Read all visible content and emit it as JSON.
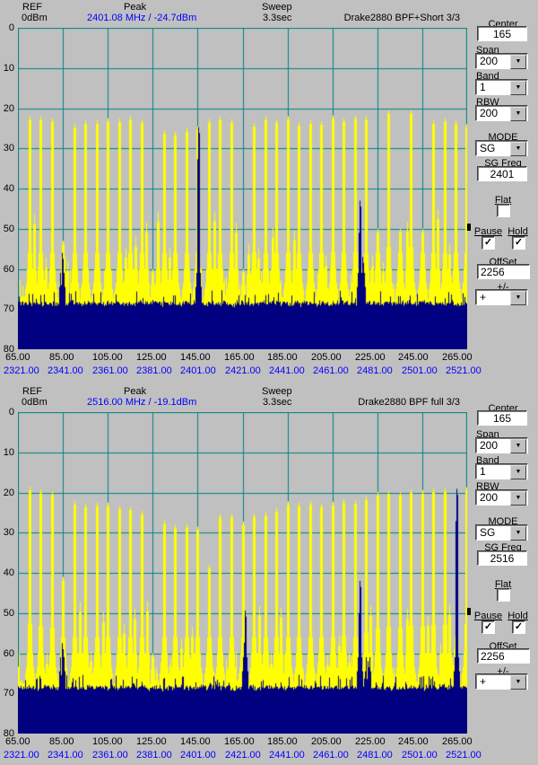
{
  "colors": {
    "window_bg": "#c0c0c0",
    "plot_bg": "#c0c0c0",
    "grid": "#008080",
    "trace_max_hold": "#ffff00",
    "trace_live": "#000080",
    "value_text": "#0000ff",
    "text": "#000000",
    "field_bg": "#ffffff"
  },
  "icons": {
    "dropdown_arrow": "▼",
    "check": "✓"
  },
  "axis": {
    "y_ticks": [
      "0",
      "10",
      "20",
      "30",
      "40",
      "50",
      "60",
      "70",
      "80"
    ],
    "x_ticks_if": [
      "65.00",
      "85.00",
      "105.00",
      "125.00",
      "145.00",
      "165.00",
      "185.00",
      "205.00",
      "225.00",
      "245.00",
      "265.00"
    ],
    "x_ticks_rf": [
      "2321.00",
      "2341.00",
      "2361.00",
      "2381.00",
      "2401.00",
      "2421.00",
      "2441.00",
      "2461.00",
      "2481.00",
      "2501.00",
      "2521.00"
    ]
  },
  "panels": [
    {
      "id": "top",
      "header": {
        "ref_label": "REF",
        "ref_value": "0dBm",
        "peak_label": "Peak",
        "peak_value": "2401.08 MHz / -24.7dBm",
        "sweep_label": "Sweep",
        "sweep_value": "3.3sec",
        "title": "Drake2880 BPF+Short 3/3"
      },
      "controls": {
        "center": {
          "label": "Center",
          "value": "165"
        },
        "span": {
          "label": "Span",
          "value": "200"
        },
        "band": {
          "label": "Band",
          "value": "1"
        },
        "rbw": {
          "label": "RBW",
          "value": "200"
        },
        "mode": {
          "label": "MODE",
          "value": "SG"
        },
        "sg_freq": {
          "label": "SG Freq",
          "value": "2401"
        },
        "flat": {
          "label": "Flat",
          "checked": false
        },
        "pause": {
          "label": "Pause",
          "checked": true
        },
        "hold": {
          "label": "Hold",
          "checked": true
        },
        "offset": {
          "label": "OffSet",
          "value": "2256"
        },
        "plusminus": {
          "label": "+/-",
          "value": "+"
        }
      }
    },
    {
      "id": "bottom",
      "header": {
        "ref_label": "REF",
        "ref_value": "0dBm",
        "peak_label": "Peak",
        "peak_value": "2516.00 MHz / -19.1dBm",
        "sweep_label": "Sweep",
        "sweep_value": "3.3sec",
        "title": "Drake2880 BPF full 3/3"
      },
      "controls": {
        "center": {
          "label": "Center",
          "value": "165"
        },
        "span": {
          "label": "Span",
          "value": "200"
        },
        "band": {
          "label": "Band",
          "value": "1"
        },
        "rbw": {
          "label": "RBW",
          "value": "200"
        },
        "mode": {
          "label": "MODE",
          "value": "SG"
        },
        "sg_freq": {
          "label": "SG Freq",
          "value": "2516"
        },
        "flat": {
          "label": "Flat",
          "checked": false
        },
        "pause": {
          "label": "Pause",
          "checked": true
        },
        "hold": {
          "label": "Hold",
          "checked": true
        },
        "offset": {
          "label": "OffSet",
          "value": "2256"
        },
        "plusminus": {
          "label": "+/-",
          "value": "+"
        }
      }
    }
  ],
  "chart_data": [
    {
      "type": "line",
      "title": "Drake2880 BPF+Short 3/3",
      "ref_level_dbm": 0,
      "sweep_sec": 3.3,
      "peak": {
        "rf_mhz": 2401.08,
        "level_dbm": -24.7
      },
      "xlim_if_mhz": [
        65,
        265
      ],
      "xlim_rf_mhz": [
        2321,
        2521
      ],
      "x_grid_step_mhz": 20,
      "ylim_dbm": [
        -80,
        0
      ],
      "y_grid_step_db": 10,
      "grid": true,
      "noise_floor_dbm": -70,
      "comb_spacing_mhz": 5,
      "max_hold_trace_combs": [
        [
          70,
          -22
        ],
        [
          75,
          -22
        ],
        [
          80,
          -22.5
        ],
        [
          85,
          -53
        ],
        [
          90,
          -24
        ],
        [
          95,
          -23
        ],
        [
          100,
          -23
        ],
        [
          105,
          -22.5
        ],
        [
          110,
          -22.6
        ],
        [
          115,
          -22
        ],
        [
          120,
          -22.8
        ],
        [
          125,
          -60
        ],
        [
          130,
          -25.5
        ],
        [
          135,
          -25.8
        ],
        [
          140,
          -25
        ],
        [
          145,
          -24.5
        ],
        [
          150,
          -22.7
        ],
        [
          155,
          -22
        ],
        [
          160,
          -22.7
        ],
        [
          165,
          -60
        ],
        [
          170,
          -23.7
        ],
        [
          175,
          -22.1
        ],
        [
          180,
          -22.8
        ],
        [
          185,
          -22
        ],
        [
          190,
          -23.5
        ],
        [
          195,
          -23
        ],
        [
          200,
          -23.3
        ],
        [
          205,
          -21.8
        ],
        [
          210,
          -22.5
        ],
        [
          215,
          -21.8
        ],
        [
          220,
          -22
        ],
        [
          225,
          -50
        ],
        [
          230,
          -20.5
        ],
        [
          235,
          -50
        ],
        [
          240,
          -20.5
        ],
        [
          245,
          -50
        ],
        [
          250,
          -23
        ],
        [
          255,
          -22.5
        ],
        [
          260,
          -23
        ],
        [
          264.5,
          -24
        ]
      ],
      "live_trace_spikes": [
        [
          84.4,
          -56
        ],
        [
          145.1,
          -24.7
        ],
        [
          217,
          -43
        ],
        [
          218.4,
          -57
        ]
      ]
    },
    {
      "type": "line",
      "title": "Drake2880 BPF full 3/3",
      "ref_level_dbm": 0,
      "sweep_sec": 3.3,
      "peak": {
        "rf_mhz": 2516.0,
        "level_dbm": -19.1
      },
      "xlim_if_mhz": [
        65,
        265
      ],
      "xlim_rf_mhz": [
        2321,
        2521
      ],
      "x_grid_step_mhz": 20,
      "ylim_dbm": [
        -80,
        0
      ],
      "y_grid_step_db": 10,
      "grid": true,
      "noise_floor_dbm": -70,
      "comb_spacing_mhz": 5,
      "max_hold_trace_combs": [
        [
          70,
          -18.6
        ],
        [
          75,
          -19.3
        ],
        [
          80,
          -19.7
        ],
        [
          85,
          -41
        ],
        [
          90,
          -22.1
        ],
        [
          95,
          -22.8
        ],
        [
          100,
          -22.5
        ],
        [
          105,
          -22.5
        ],
        [
          110,
          -23.3
        ],
        [
          115,
          -23.5
        ],
        [
          120,
          -24.6
        ],
        [
          125,
          -60
        ],
        [
          130,
          -26.9
        ],
        [
          135,
          -28
        ],
        [
          140,
          -27.8
        ],
        [
          145,
          -28.5
        ],
        [
          150,
          -38
        ],
        [
          155,
          -25.3
        ],
        [
          160,
          -25.3
        ],
        [
          165,
          -27.2
        ],
        [
          170,
          -25.2
        ],
        [
          175,
          -24.9
        ],
        [
          180,
          -23.9
        ],
        [
          185,
          -22.2
        ],
        [
          190,
          -22.5
        ],
        [
          195,
          -22.1
        ],
        [
          200,
          -22.8
        ],
        [
          205,
          -22.3
        ],
        [
          210,
          -21.7
        ],
        [
          215,
          -22
        ],
        [
          220,
          -20.9
        ],
        [
          225,
          -19.9
        ],
        [
          230,
          -19.5
        ],
        [
          235,
          -19.8
        ],
        [
          240,
          -19.2
        ],
        [
          245,
          -19.4
        ],
        [
          250,
          -19
        ],
        [
          255,
          -18.9
        ],
        [
          260,
          -55
        ],
        [
          264.5,
          -18.7
        ]
      ],
      "live_trace_spikes": [
        [
          84.4,
          -57.5
        ],
        [
          166,
          -49.4
        ],
        [
          217,
          -42
        ],
        [
          220.7,
          -62
        ],
        [
          260.2,
          -19.1
        ]
      ]
    }
  ]
}
